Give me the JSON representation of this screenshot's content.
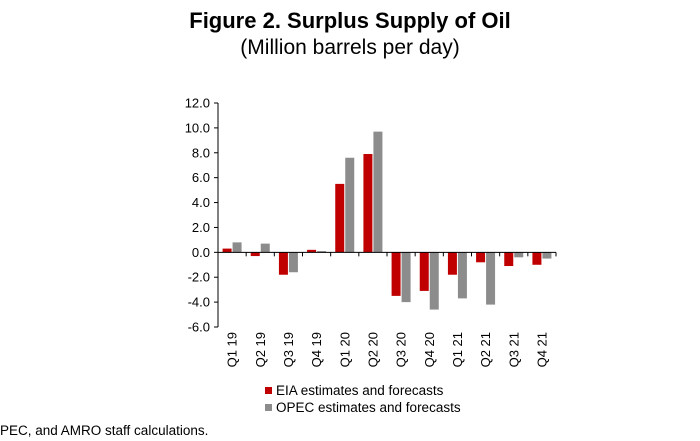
{
  "chart_data": {
    "type": "bar",
    "title": "Figure 2. Surplus Supply of Oil",
    "subtitle": "(Million barrels per day)",
    "categories": [
      "Q1 19",
      "Q2 19",
      "Q3 19",
      "Q4 19",
      "Q1 20",
      "Q2 20",
      "Q3 20",
      "Q4 20",
      "Q1 21",
      "Q2 21",
      "Q3 21",
      "Q4 21"
    ],
    "series": [
      {
        "name": "EIA estimates and forecasts",
        "color": "#c00000",
        "values": [
          0.3,
          -0.3,
          -1.8,
          0.2,
          5.5,
          7.9,
          -3.5,
          -3.1,
          -1.8,
          -0.8,
          -1.1,
          -1.0
        ]
      },
      {
        "name": "OPEC estimates and forecasts",
        "color": "#8c8c8c",
        "values": [
          0.8,
          0.7,
          -1.6,
          0.1,
          7.6,
          9.7,
          -4.0,
          -4.6,
          -3.7,
          -4.2,
          -0.4,
          -0.5
        ]
      }
    ],
    "ylim": [
      -6.0,
      12.0
    ],
    "yticks": [
      "12.0",
      "10.0",
      "8.0",
      "6.0",
      "4.0",
      "2.0",
      "0.0",
      "-2.0",
      "-4.0",
      "-6.0"
    ],
    "xlabel": "",
    "ylabel": "",
    "grid": false,
    "legend_position": "bottom"
  },
  "source_text": "PEC, and AMRO staff calculations."
}
